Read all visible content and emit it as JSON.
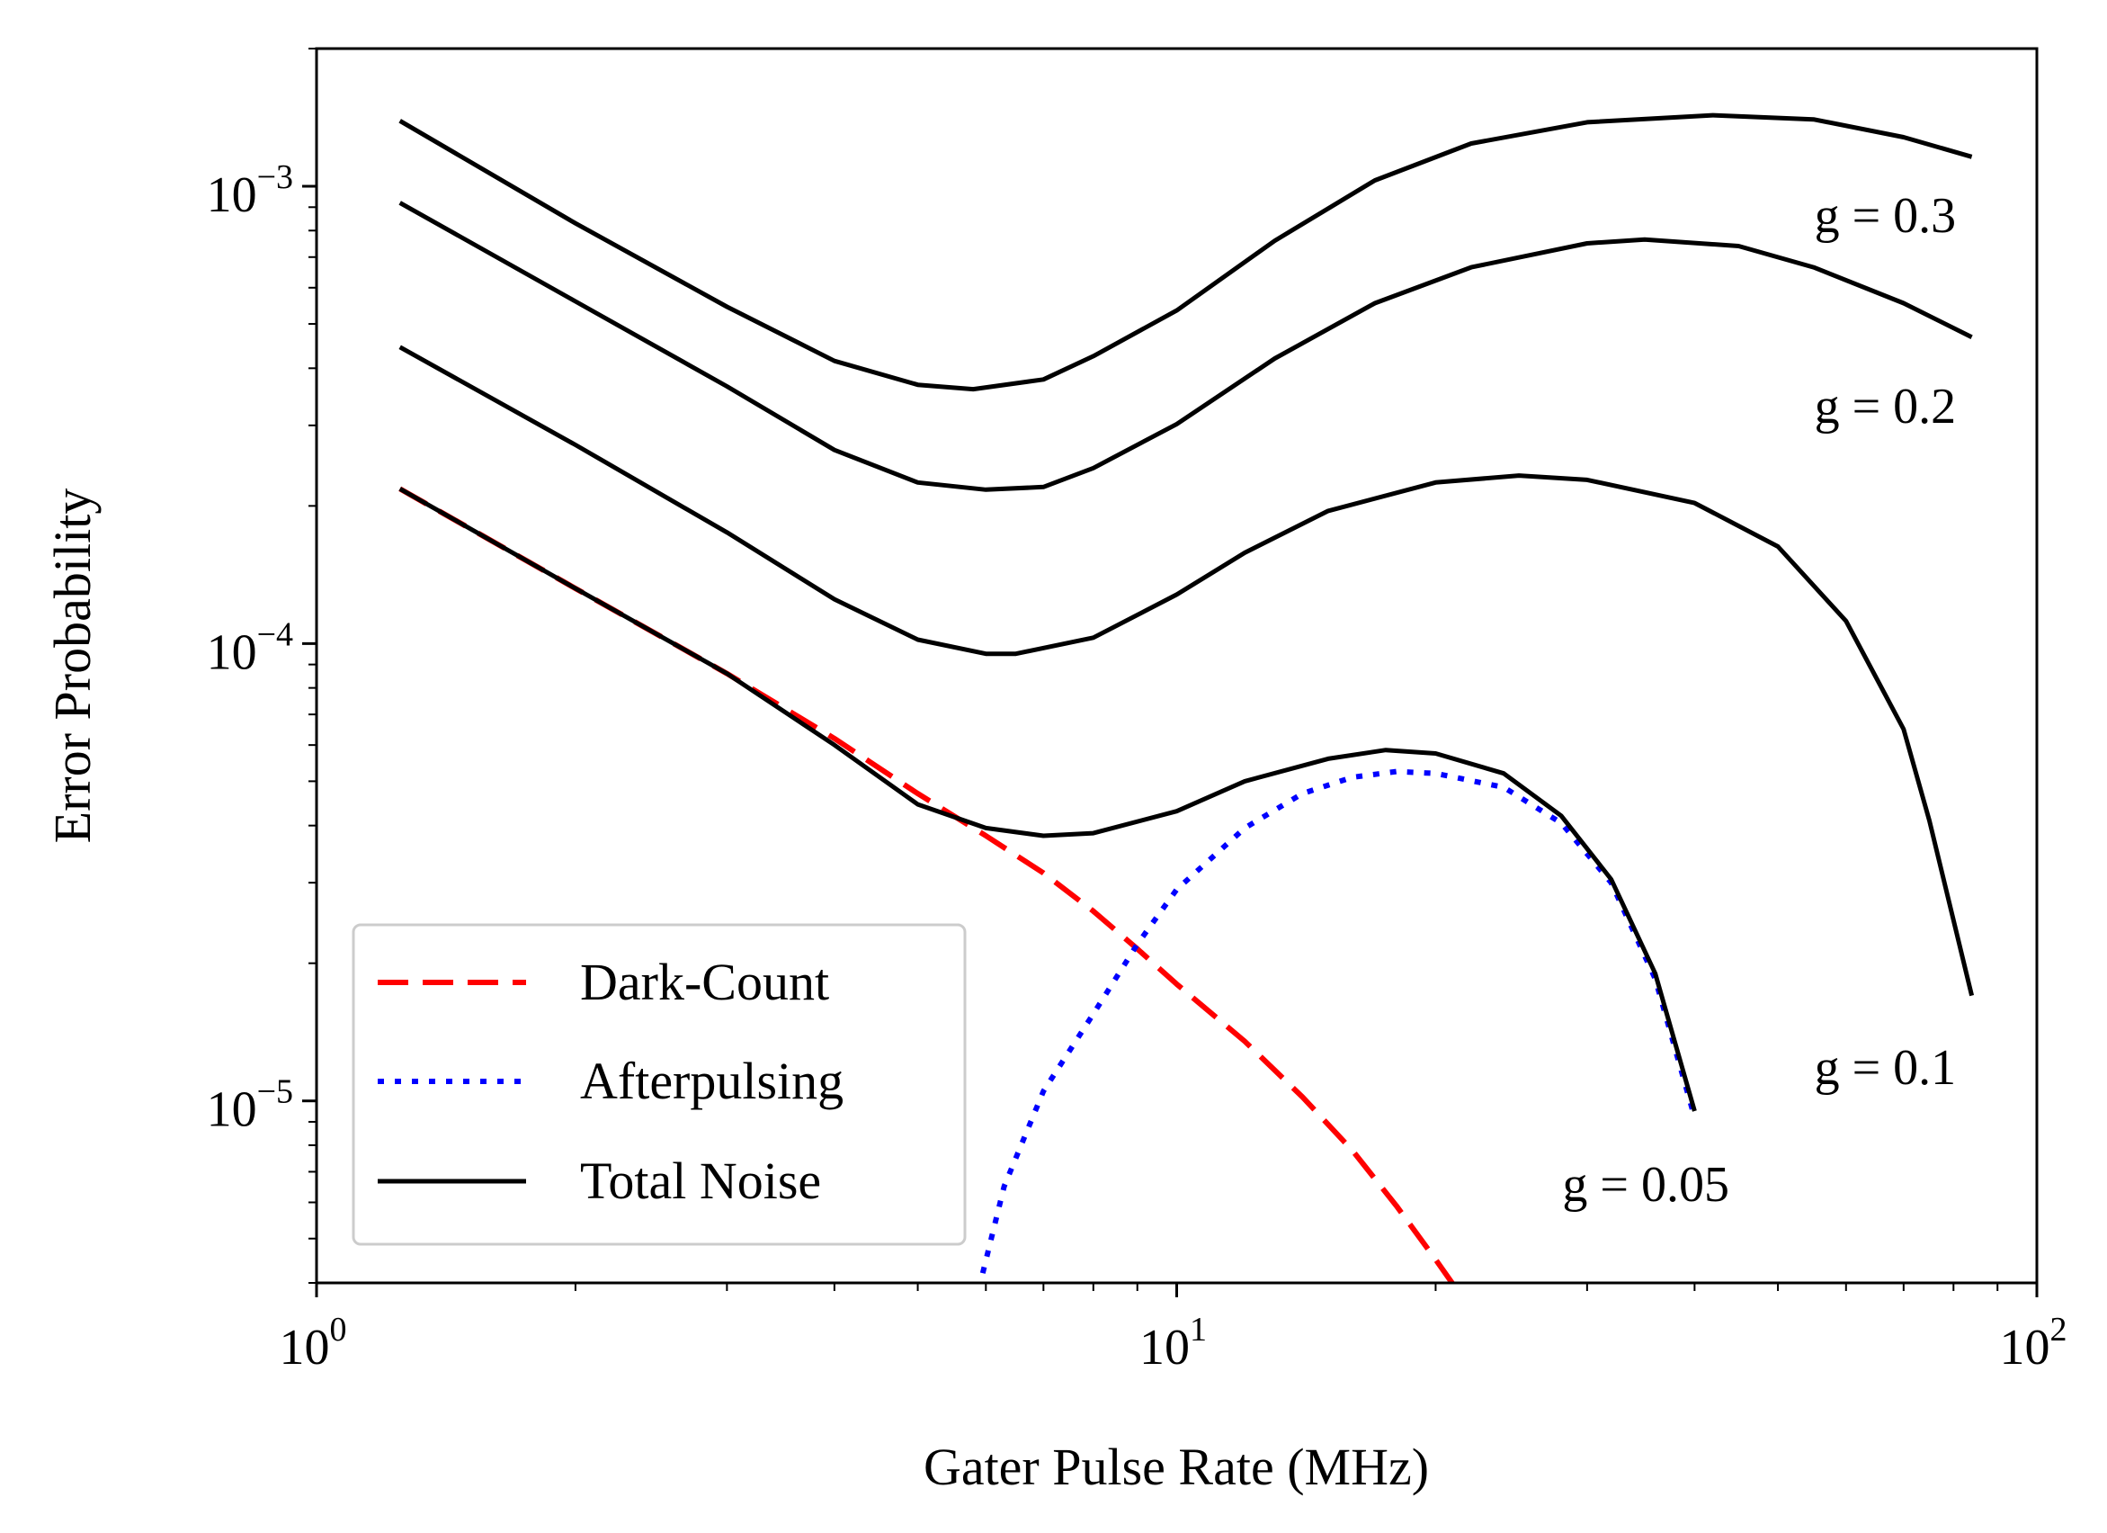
{
  "chart_data": {
    "type": "line",
    "xscale": "log",
    "yscale": "log",
    "xlim": [
      1,
      100
    ],
    "ylim": [
      4e-06,
      0.002
    ],
    "xlabel": "Gater Pulse Rate (MHz)",
    "ylabel": "Error Probability",
    "xticks": [
      {
        "value": 1,
        "base": "10",
        "exp": "0"
      },
      {
        "value": 10,
        "base": "10",
        "exp": "1"
      },
      {
        "value": 100,
        "base": "10",
        "exp": "2"
      }
    ],
    "yticks": [
      {
        "value": 1e-05,
        "base": "10",
        "exp": "−5"
      },
      {
        "value": 0.0001,
        "base": "10",
        "exp": "−4"
      },
      {
        "value": 0.001,
        "base": "10",
        "exp": "−3"
      }
    ],
    "legend": {
      "position": "lower-left",
      "entries": [
        {
          "label": "Dark-Count",
          "series": "dark",
          "style": "dashed",
          "color": "#ff0000"
        },
        {
          "label": "Afterpulsing",
          "series": "after",
          "style": "dotted",
          "color": "#0000ff"
        },
        {
          "label": "Total Noise",
          "series": "total",
          "style": "solid",
          "color": "#000000"
        }
      ]
    },
    "series": [
      {
        "name": "Dark-Count",
        "id": "dark",
        "color": "#ff0000",
        "style": "dashed",
        "points": [
          [
            1.25,
            0.000218
          ],
          [
            2,
            0.000132
          ],
          [
            3,
            8.6e-05
          ],
          [
            4,
            6.2e-05
          ],
          [
            5,
            4.7e-05
          ],
          [
            6,
            3.8e-05
          ],
          [
            7,
            3.15e-05
          ],
          [
            8,
            2.6e-05
          ],
          [
            9,
            2.15e-05
          ],
          [
            10,
            1.8e-05
          ],
          [
            12,
            1.35e-05
          ],
          [
            14,
            1.02e-05
          ],
          [
            16,
            7.8e-06
          ],
          [
            18,
            5.9e-06
          ],
          [
            20,
            4.5e-06
          ],
          [
            21,
            3.95e-06
          ]
        ]
      },
      {
        "name": "Afterpulsing",
        "id": "after",
        "color": "#0000ff",
        "style": "dotted",
        "points": [
          [
            5.95,
            4.2e-06
          ],
          [
            6.3,
            6.5e-06
          ],
          [
            7,
            1.05e-05
          ],
          [
            8,
            1.55e-05
          ],
          [
            9,
            2.2e-05
          ],
          [
            10,
            2.9e-05
          ],
          [
            12,
            3.95e-05
          ],
          [
            14,
            4.7e-05
          ],
          [
            16,
            5.1e-05
          ],
          [
            18,
            5.25e-05
          ],
          [
            20,
            5.2e-05
          ],
          [
            24,
            4.85e-05
          ],
          [
            28,
            4.05e-05
          ],
          [
            32,
            3e-05
          ],
          [
            36,
            1.85e-05
          ],
          [
            40,
            9.2e-06
          ]
        ]
      },
      {
        "name": "Total Noise g = 0.05",
        "id": "total",
        "color": "#000000",
        "style": "solid",
        "label": "g = 0.05",
        "points": [
          [
            1.25,
            0.000218
          ],
          [
            2,
            0.000132
          ],
          [
            3,
            8.6e-05
          ],
          [
            4,
            6e-05
          ],
          [
            5,
            4.45e-05
          ],
          [
            6,
            3.95e-05
          ],
          [
            7,
            3.8e-05
          ],
          [
            8,
            3.85e-05
          ],
          [
            10,
            4.3e-05
          ],
          [
            12,
            5e-05
          ],
          [
            15,
            5.6e-05
          ],
          [
            17.5,
            5.85e-05
          ],
          [
            20,
            5.75e-05
          ],
          [
            24,
            5.2e-05
          ],
          [
            28,
            4.2e-05
          ],
          [
            32,
            3.05e-05
          ],
          [
            36,
            1.9e-05
          ],
          [
            40,
            9.5e-06
          ]
        ]
      },
      {
        "name": "Total Noise g = 0.1",
        "id": "g01",
        "color": "#000000",
        "style": "solid",
        "label": "g = 0.1",
        "points": [
          [
            1.25,
            0.000445
          ],
          [
            2,
            0.000272
          ],
          [
            3,
            0.000175
          ],
          [
            4,
            0.000125
          ],
          [
            5,
            0.000102
          ],
          [
            6,
            9.5e-05
          ],
          [
            6.5,
            9.5e-05
          ],
          [
            8,
            0.000103
          ],
          [
            10,
            0.000128
          ],
          [
            12,
            0.000158
          ],
          [
            15,
            0.000195
          ],
          [
            20,
            0.000225
          ],
          [
            25,
            0.000233
          ],
          [
            30,
            0.000228
          ],
          [
            40,
            0.000203
          ],
          [
            50,
            0.000163
          ],
          [
            60,
            0.000112
          ],
          [
            70,
            6.5e-05
          ],
          [
            75,
            4.1e-05
          ],
          [
            84,
            1.7e-05
          ]
        ]
      },
      {
        "name": "Total Noise g = 0.2",
        "id": "g02",
        "color": "#000000",
        "style": "solid",
        "label": "g = 0.2",
        "points": [
          [
            1.25,
            0.00092
          ],
          [
            2,
            0.00056
          ],
          [
            3,
            0.000365
          ],
          [
            4,
            0.000265
          ],
          [
            5,
            0.000225
          ],
          [
            6,
            0.000217
          ],
          [
            7,
            0.00022
          ],
          [
            8,
            0.000242
          ],
          [
            10,
            0.000302
          ],
          [
            13,
            0.00042
          ],
          [
            17,
            0.000555
          ],
          [
            22,
            0.000665
          ],
          [
            30,
            0.00075
          ],
          [
            35,
            0.000765
          ],
          [
            45,
            0.00074
          ],
          [
            55,
            0.000665
          ],
          [
            70,
            0.000555
          ],
          [
            84,
            0.000468
          ]
        ]
      },
      {
        "name": "Total Noise g = 0.3",
        "id": "g03",
        "color": "#000000",
        "style": "solid",
        "label": "g = 0.3",
        "points": [
          [
            1.25,
            0.00139
          ],
          [
            2,
            0.00083
          ],
          [
            3,
            0.000545
          ],
          [
            4,
            0.000415
          ],
          [
            5,
            0.000368
          ],
          [
            5.8,
            0.00036
          ],
          [
            7,
            0.000378
          ],
          [
            8,
            0.000425
          ],
          [
            10,
            0.000535
          ],
          [
            13,
            0.00076
          ],
          [
            17,
            0.00103
          ],
          [
            22,
            0.00124
          ],
          [
            30,
            0.00138
          ],
          [
            42,
            0.00143
          ],
          [
            55,
            0.0014
          ],
          [
            70,
            0.00128
          ],
          [
            84,
            0.00116
          ]
        ]
      }
    ],
    "annotations": [
      {
        "text": "g = 0.3",
        "series": "g03"
      },
      {
        "text": "g = 0.2",
        "series": "g02"
      },
      {
        "text": "g = 0.1",
        "series": "g01"
      },
      {
        "text": "g = 0.05",
        "series": "total"
      }
    ]
  }
}
